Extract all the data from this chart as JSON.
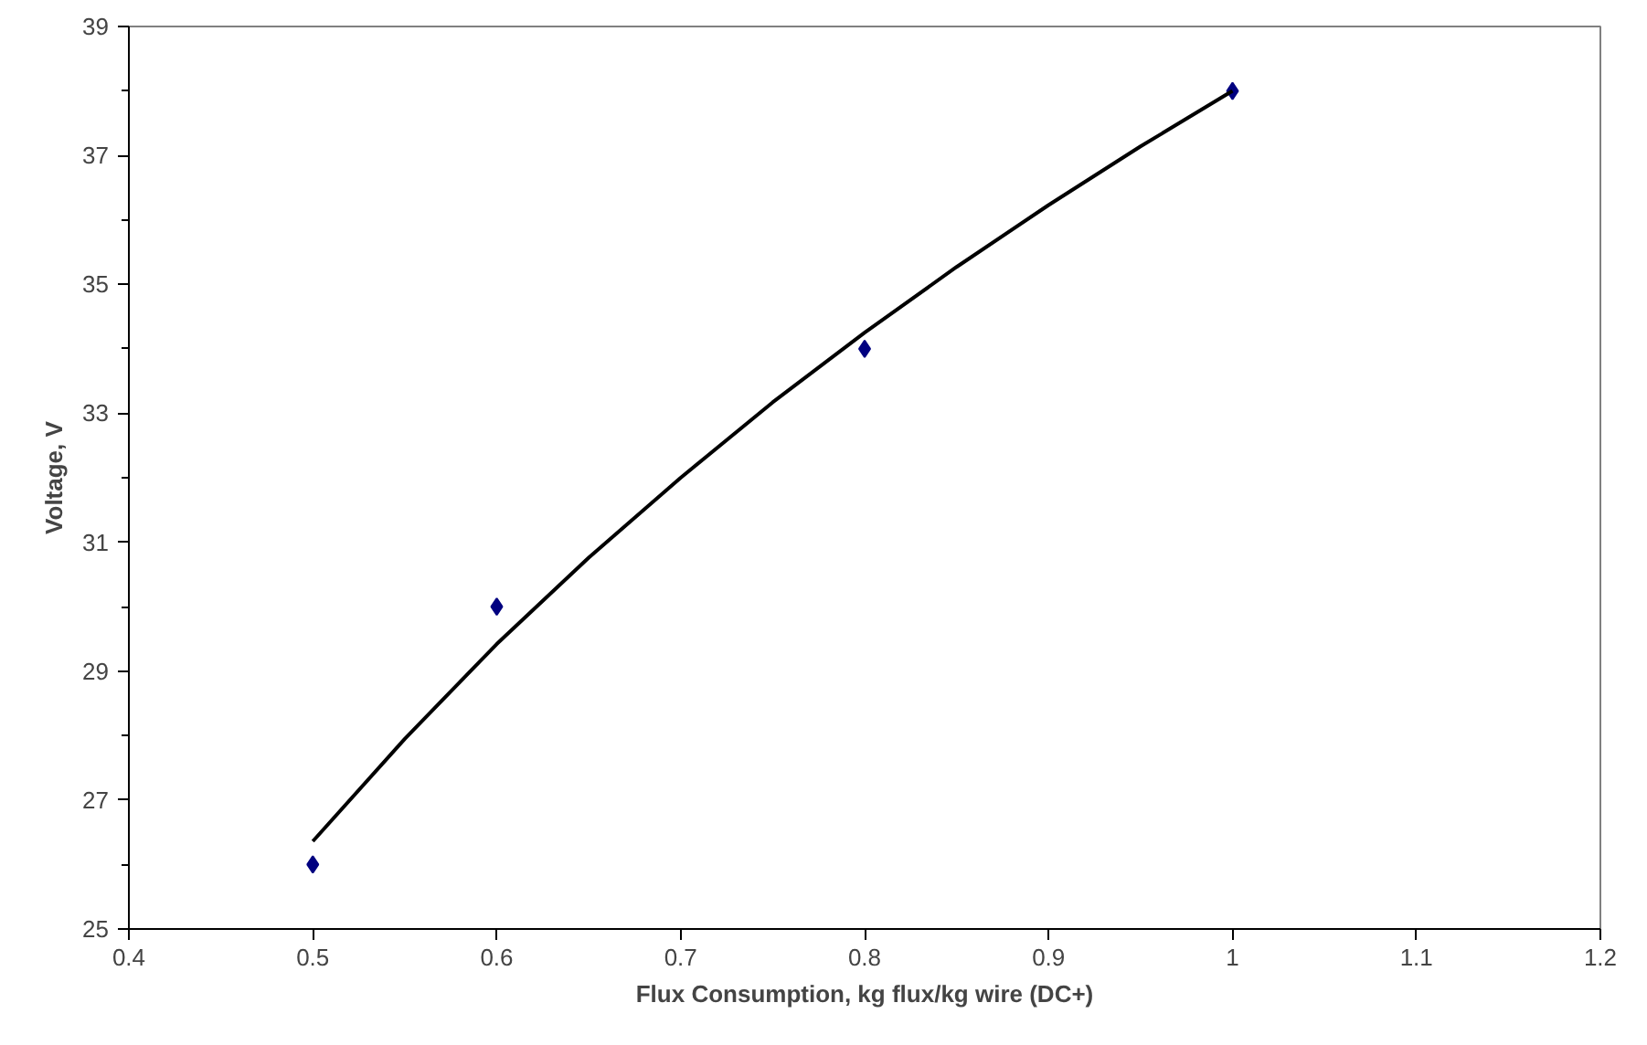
{
  "chart_data": {
    "type": "scatter",
    "xlabel": "Flux Consumption, kg flux/kg wire (DC+)",
    "ylabel": "Voltage, V",
    "xlim": [
      0.4,
      1.2
    ],
    "xticks": [
      0.4,
      0.5,
      0.6,
      0.7,
      0.8,
      0.9,
      1,
      1.1,
      1.2
    ],
    "ylim": [
      25,
      39
    ],
    "yticks": [
      25,
      27,
      29,
      31,
      33,
      35,
      37,
      39
    ],
    "grid": false,
    "series": [
      {
        "color": "#000080",
        "marker": "diamond",
        "x": [
          0.5,
          0.6,
          0.8,
          1.0
        ],
        "values": [
          26,
          30,
          34,
          38
        ]
      },
      {
        "type": "line",
        "color": "#000000",
        "marker": "none",
        "line_style": "solid",
        "x": [
          0.5,
          0.55,
          0.6,
          0.65,
          0.7,
          0.75,
          0.8,
          0.85,
          0.9,
          0.95,
          1.0
        ],
        "values": [
          26.36,
          27.95,
          29.42,
          30.76,
          32.0,
          33.17,
          34.25,
          35.27,
          36.23,
          37.14,
          38.0
        ]
      }
    ]
  }
}
